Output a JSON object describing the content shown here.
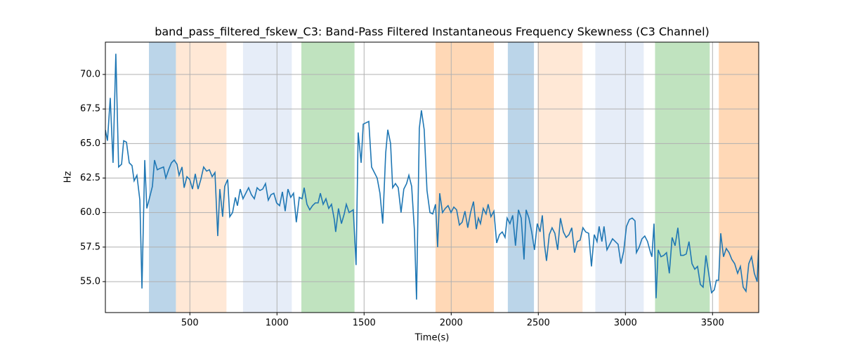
{
  "chart_data": {
    "type": "line",
    "title": "band_pass_filtered_fskew_C3: Band-Pass Filtered Instantaneous Frequency Skewness (C3 Channel)",
    "xlabel": "Time(s)",
    "ylabel": "Hz",
    "xlim": [
      15,
      3765
    ],
    "ylim": [
      52.76,
      72.34
    ],
    "xticks": [
      500,
      1000,
      1500,
      2000,
      2500,
      3000,
      3500
    ],
    "yticks": [
      {
        "value": 55,
        "label": "55.0"
      },
      {
        "value": 57.5,
        "label": "57.5"
      },
      {
        "value": 60,
        "label": "60.0"
      },
      {
        "value": 62.5,
        "label": "62.5"
      },
      {
        "value": 65,
        "label": "65.0"
      },
      {
        "value": 67.5,
        "label": "67.5"
      },
      {
        "value": 70,
        "label": "70.0"
      }
    ],
    "grid": true,
    "spans": [
      {
        "x0": 265,
        "x1": 420,
        "color": "#bbd5e9"
      },
      {
        "x0": 420,
        "x1": 710,
        "color": "#ffe8d6"
      },
      {
        "x0": 805,
        "x1": 1085,
        "color": "#e6edf8"
      },
      {
        "x0": 1140,
        "x1": 1445,
        "color": "#c0e3bf"
      },
      {
        "x0": 1910,
        "x1": 2245,
        "color": "#ffd8b6"
      },
      {
        "x0": 2325,
        "x1": 2475,
        "color": "#bbd5e9"
      },
      {
        "x0": 2496,
        "x1": 2754,
        "color": "#ffe8d6"
      },
      {
        "x0": 2827,
        "x1": 3105,
        "color": "#e6edf8"
      },
      {
        "x0": 3170,
        "x1": 3484,
        "color": "#c0e3bf"
      },
      {
        "x0": 3536,
        "x1": 3765,
        "color": "#ffd8b6"
      }
    ],
    "x": [
      15,
      27,
      43,
      59,
      75,
      91,
      108,
      120,
      136,
      152,
      168,
      180,
      196,
      213,
      225,
      241,
      253,
      269,
      285,
      297,
      313,
      329,
      349,
      362,
      378,
      394,
      410,
      426,
      438,
      455,
      467,
      483,
      499,
      515,
      531,
      547,
      563,
      579,
      596,
      612,
      628,
      644,
      660,
      672,
      688,
      700,
      717,
      729,
      745,
      761,
      773,
      789,
      805,
      821,
      837,
      853,
      870,
      886,
      902,
      918,
      934,
      950,
      966,
      982,
      998,
      1015,
      1031,
      1047,
      1063,
      1079,
      1095,
      1111,
      1128,
      1144,
      1156,
      1172,
      1188,
      1204,
      1220,
      1236,
      1249,
      1265,
      1281,
      1297,
      1313,
      1329,
      1337,
      1353,
      1370,
      1386,
      1398,
      1414,
      1438,
      1454,
      1466,
      1483,
      1495,
      1511,
      1527,
      1543,
      1559,
      1575,
      1591,
      1607,
      1624,
      1636,
      1652,
      1664,
      1680,
      1696,
      1712,
      1728,
      1744,
      1757,
      1773,
      1789,
      1801,
      1817,
      1829,
      1845,
      1861,
      1878,
      1894,
      1910,
      1922,
      1934,
      1950,
      1966,
      1982,
      1999,
      2015,
      2031,
      2047,
      2063,
      2079,
      2095,
      2111,
      2128,
      2144,
      2156,
      2168,
      2184,
      2200,
      2212,
      2228,
      2245,
      2261,
      2277,
      2293,
      2309,
      2321,
      2337,
      2353,
      2369,
      2386,
      2402,
      2418,
      2430,
      2446,
      2462,
      2478,
      2494,
      2510,
      2523,
      2535,
      2547,
      2563,
      2579,
      2595,
      2611,
      2627,
      2644,
      2660,
      2676,
      2692,
      2708,
      2724,
      2740,
      2756,
      2772,
      2789,
      2805,
      2821,
      2837,
      2849,
      2865,
      2877,
      2894,
      2910,
      2926,
      2942,
      2958,
      2974,
      2990,
      3006,
      3023,
      3039,
      3055,
      3063,
      3079,
      3095,
      3111,
      3127,
      3144,
      3152,
      3164,
      3176,
      3188,
      3204,
      3220,
      3236,
      3252,
      3268,
      3285,
      3301,
      3317,
      3333,
      3349,
      3365,
      3382,
      3398,
      3414,
      3430,
      3446,
      3462,
      3478,
      3494,
      3510,
      3522,
      3535,
      3547,
      3563,
      3579,
      3595,
      3611,
      3627,
      3644,
      3660,
      3676,
      3692,
      3708,
      3724,
      3740,
      3756,
      3764
    ],
    "series": [
      {
        "name": "band_pass_filtered_fskew_C3",
        "color": "#1f77b4",
        "values": [
          65.98,
          65.2,
          68.3,
          63.6,
          71.5,
          63.3,
          63.5,
          65.2,
          65.1,
          63.6,
          63.4,
          62.3,
          62.7,
          60.9,
          54.5,
          63.8,
          60.3,
          61.1,
          61.9,
          63.8,
          63.1,
          63.2,
          63.3,
          62.5,
          63.1,
          63.6,
          63.8,
          63.5,
          62.7,
          63.3,
          61.8,
          62.6,
          62.4,
          61.7,
          62.8,
          61.7,
          62.4,
          63.3,
          63.0,
          63.1,
          62.6,
          62.9,
          58.3,
          61.7,
          59.7,
          61.9,
          62.4,
          59.7,
          60.0,
          61.1,
          60.5,
          61.7,
          61.0,
          61.4,
          61.8,
          61.3,
          61.0,
          61.8,
          61.6,
          61.7,
          62.1,
          60.9,
          61.3,
          61.4,
          60.7,
          60.5,
          61.5,
          60.1,
          61.7,
          61.1,
          61.4,
          59.3,
          61.1,
          61.0,
          61.8,
          60.6,
          60.2,
          60.5,
          60.7,
          60.7,
          61.4,
          60.6,
          61.0,
          60.3,
          60.6,
          59.5,
          58.6,
          60.3,
          59.2,
          59.9,
          60.6,
          60.0,
          60.2,
          56.2,
          65.8,
          63.6,
          66.4,
          66.5,
          66.6,
          63.3,
          62.9,
          62.5,
          61.4,
          59.2,
          64.3,
          66.0,
          65.0,
          61.8,
          62.1,
          61.8,
          60.0,
          61.7,
          62.1,
          62.7,
          61.9,
          58.7,
          53.7,
          66.1,
          67.4,
          66.0,
          61.6,
          60.0,
          59.9,
          60.6,
          57.5,
          61.4,
          60.0,
          60.3,
          60.5,
          60.0,
          60.4,
          60.2,
          59.1,
          59.3,
          60.1,
          58.9,
          60.0,
          60.8,
          58.8,
          59.6,
          59.2,
          60.3,
          59.9,
          60.6,
          59.7,
          60.1,
          57.8,
          58.4,
          58.6,
          58.2,
          59.6,
          59.2,
          59.8,
          57.6,
          60.2,
          59.6,
          56.6,
          60.2,
          59.6,
          58.6,
          57.3,
          59.2,
          58.6,
          59.8,
          57.7,
          56.5,
          58.4,
          58.9,
          58.5,
          57.3,
          59.6,
          58.6,
          58.2,
          58.4,
          58.9,
          57.1,
          57.9,
          58.0,
          58.9,
          58.6,
          58.5,
          56.1,
          58.4,
          57.9,
          59.0,
          57.9,
          59.0,
          57.3,
          57.7,
          58.1,
          57.9,
          57.7,
          56.3,
          57.2,
          59.0,
          59.5,
          59.6,
          59.4,
          57.1,
          57.5,
          58.1,
          58.3,
          57.9,
          57.1,
          56.8,
          59.2,
          53.8,
          57.3,
          56.8,
          56.9,
          57.1,
          55.6,
          58.2,
          57.6,
          58.9,
          56.9,
          56.9,
          57.0,
          57.9,
          56.3,
          55.9,
          56.1,
          54.8,
          54.6,
          56.9,
          55.6,
          54.2,
          54.4,
          55.1,
          55.1,
          58.5,
          56.8,
          57.4,
          57.1,
          56.6,
          56.3,
          55.6,
          56.1,
          54.6,
          54.3,
          56.3,
          56.8,
          55.6,
          55.0,
          57.3
        ]
      }
    ]
  }
}
